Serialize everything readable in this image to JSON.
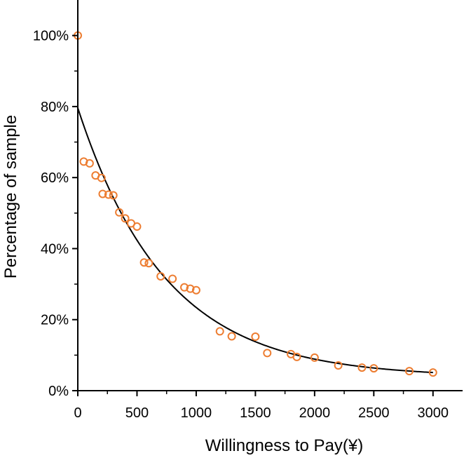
{
  "chart_data": {
    "type": "scatter",
    "xlabel": "Willingness to Pay(¥)",
    "ylabel": "Percentage of sample",
    "xlim": [
      0,
      3250
    ],
    "ylim": [
      0,
      110
    ],
    "x_ticks": [
      0,
      500,
      1000,
      1500,
      2000,
      2500,
      3000
    ],
    "x_tick_labels": [
      "0",
      "500",
      "1000",
      "1500",
      "2000",
      "2500",
      "3000"
    ],
    "y_ticks": [
      0,
      20,
      40,
      60,
      80,
      100
    ],
    "y_tick_labels": [
      "0%",
      "20%",
      "40%",
      "60%",
      "80%",
      "100%"
    ],
    "grid": false,
    "colors": {
      "points": "#ED7D31",
      "fit_line": "#000000",
      "axis": "#000000"
    },
    "points": [
      {
        "x": 0,
        "y": 100
      },
      {
        "x": 50,
        "y": 64.5
      },
      {
        "x": 100,
        "y": 64
      },
      {
        "x": 150,
        "y": 60.6
      },
      {
        "x": 200,
        "y": 59.9
      },
      {
        "x": 210,
        "y": 55.4
      },
      {
        "x": 260,
        "y": 55.2
      },
      {
        "x": 300,
        "y": 55.0
      },
      {
        "x": 350,
        "y": 50.2
      },
      {
        "x": 400,
        "y": 48.5
      },
      {
        "x": 450,
        "y": 47.1
      },
      {
        "x": 500,
        "y": 46.2
      },
      {
        "x": 560,
        "y": 36.1
      },
      {
        "x": 600,
        "y": 35.9
      },
      {
        "x": 700,
        "y": 32.2
      },
      {
        "x": 800,
        "y": 31.5
      },
      {
        "x": 900,
        "y": 29.1
      },
      {
        "x": 950,
        "y": 28.7
      },
      {
        "x": 1000,
        "y": 28.3
      },
      {
        "x": 1200,
        "y": 16.7
      },
      {
        "x": 1300,
        "y": 15.3
      },
      {
        "x": 1500,
        "y": 15.2
      },
      {
        "x": 1600,
        "y": 10.6
      },
      {
        "x": 1800,
        "y": 10.3
      },
      {
        "x": 1850,
        "y": 9.5
      },
      {
        "x": 2000,
        "y": 9.3
      },
      {
        "x": 2200,
        "y": 7.1
      },
      {
        "x": 2400,
        "y": 6.5
      },
      {
        "x": 2500,
        "y": 6.3
      },
      {
        "x": 2800,
        "y": 5.5
      },
      {
        "x": 3000,
        "y": 5.1
      }
    ],
    "fit_curve": {
      "type": "exponential",
      "equation": "y = a*exp(-x/t) + c",
      "params": {
        "a": 75.8,
        "t": 740,
        "c": 3.8
      },
      "x_range": [
        0,
        3000
      ]
    }
  }
}
